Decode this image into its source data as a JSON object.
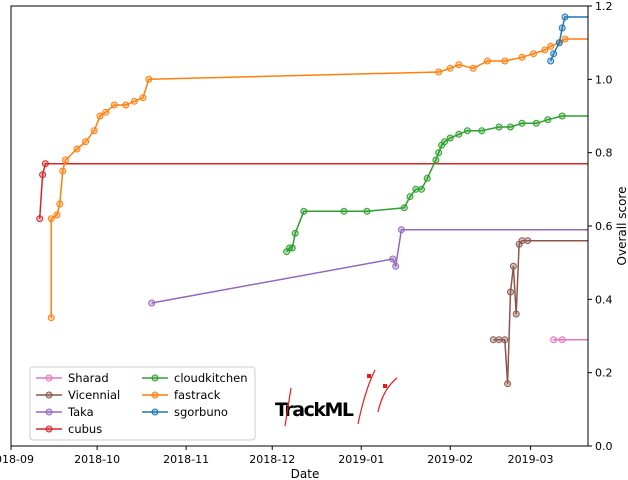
{
  "chart_data": {
    "type": "line",
    "xlabel": "Date",
    "ylabel": "Overall score",
    "xlim": [
      "2018-09-01",
      "2019-03-21"
    ],
    "ylim": [
      0.0,
      1.2
    ],
    "x_ticks": [
      {
        "date": "2018-09-01",
        "label": "2018-09"
      },
      {
        "date": "2018-10-01",
        "label": "2018-10"
      },
      {
        "date": "2018-11-01",
        "label": "2018-11"
      },
      {
        "date": "2018-12-01",
        "label": "2018-12"
      },
      {
        "date": "2019-01-01",
        "label": "2019-01"
      },
      {
        "date": "2019-02-01",
        "label": "2019-02"
      },
      {
        "date": "2019-03-01",
        "label": "2019-03"
      }
    ],
    "y_ticks": [
      {
        "value": 0.0,
        "label": "0.0"
      },
      {
        "value": 0.2,
        "label": "0.2"
      },
      {
        "value": 0.4,
        "label": "0.4"
      },
      {
        "value": 0.6,
        "label": "0.6"
      },
      {
        "value": 0.8,
        "label": "0.8"
      },
      {
        "value": 1.0,
        "label": "1.0"
      },
      {
        "value": 1.2,
        "label": "1.2"
      }
    ],
    "y_axis_side": "right",
    "grid": false,
    "legend_position": "lower-left",
    "legend_columns": 2,
    "logo_text": "TrackML",
    "series": [
      {
        "name": "Sharad",
        "color": "#e377c2",
        "points": [
          [
            "2019-03-09",
            0.29
          ],
          [
            "2019-03-12",
            0.29
          ]
        ],
        "final": 0.29
      },
      {
        "name": "Vicennial",
        "color": "#8c564b",
        "points": [
          [
            "2019-02-16",
            0.29
          ],
          [
            "2019-02-18",
            0.29
          ],
          [
            "2019-02-20",
            0.29
          ],
          [
            "2019-02-21",
            0.17
          ],
          [
            "2019-02-22",
            0.42
          ],
          [
            "2019-02-23",
            0.49
          ],
          [
            "2019-02-24",
            0.36
          ],
          [
            "2019-02-25",
            0.55
          ],
          [
            "2019-02-26",
            0.56
          ],
          [
            "2019-02-28",
            0.56
          ]
        ],
        "final": 0.56
      },
      {
        "name": "Taka",
        "color": "#9467bd",
        "points": [
          [
            "2018-10-20",
            0.39
          ],
          [
            "2019-01-12",
            0.51
          ],
          [
            "2019-01-13",
            0.49
          ],
          [
            "2019-01-15",
            0.59
          ]
        ],
        "final": 0.59
      },
      {
        "name": "cubus",
        "color": "#d62728",
        "points": [
          [
            "2018-09-11",
            0.62
          ],
          [
            "2018-09-12",
            0.74
          ],
          [
            "2018-09-13",
            0.77
          ]
        ],
        "final": 0.77
      },
      {
        "name": "cloudkitchen",
        "color": "#2ca02c",
        "points": [
          [
            "2018-12-06",
            0.53
          ],
          [
            "2018-12-07",
            0.54
          ],
          [
            "2018-12-08",
            0.54
          ],
          [
            "2018-12-09",
            0.58
          ],
          [
            "2018-12-12",
            0.64
          ],
          [
            "2018-12-26",
            0.64
          ],
          [
            "2019-01-03",
            0.64
          ],
          [
            "2019-01-16",
            0.65
          ],
          [
            "2019-01-18",
            0.68
          ],
          [
            "2019-01-20",
            0.7
          ],
          [
            "2019-01-22",
            0.7
          ],
          [
            "2019-01-24",
            0.73
          ],
          [
            "2019-01-27",
            0.78
          ],
          [
            "2019-01-28",
            0.8
          ],
          [
            "2019-01-29",
            0.82
          ],
          [
            "2019-01-30",
            0.83
          ],
          [
            "2019-02-01",
            0.84
          ],
          [
            "2019-02-04",
            0.85
          ],
          [
            "2019-02-07",
            0.86
          ],
          [
            "2019-02-12",
            0.86
          ],
          [
            "2019-02-18",
            0.87
          ],
          [
            "2019-02-22",
            0.87
          ],
          [
            "2019-02-26",
            0.88
          ],
          [
            "2019-03-03",
            0.88
          ],
          [
            "2019-03-07",
            0.89
          ],
          [
            "2019-03-12",
            0.9
          ]
        ],
        "final": 0.9
      },
      {
        "name": "fastrack",
        "color": "#ff7f0e",
        "points": [
          [
            "2018-09-15",
            0.35
          ],
          [
            "2018-09-15",
            0.62
          ],
          [
            "2018-09-17",
            0.63
          ],
          [
            "2018-09-18",
            0.66
          ],
          [
            "2018-09-19",
            0.75
          ],
          [
            "2018-09-20",
            0.78
          ],
          [
            "2018-09-24",
            0.81
          ],
          [
            "2018-09-27",
            0.83
          ],
          [
            "2018-09-30",
            0.86
          ],
          [
            "2018-10-02",
            0.9
          ],
          [
            "2018-10-04",
            0.91
          ],
          [
            "2018-10-07",
            0.93
          ],
          [
            "2018-10-11",
            0.93
          ],
          [
            "2018-10-14",
            0.94
          ],
          [
            "2018-10-17",
            0.95
          ],
          [
            "2018-10-19",
            1.0
          ],
          [
            "2019-01-28",
            1.02
          ],
          [
            "2019-02-01",
            1.03
          ],
          [
            "2019-02-04",
            1.04
          ],
          [
            "2019-02-09",
            1.03
          ],
          [
            "2019-02-14",
            1.05
          ],
          [
            "2019-02-20",
            1.05
          ],
          [
            "2019-02-26",
            1.06
          ],
          [
            "2019-03-02",
            1.07
          ],
          [
            "2019-03-06",
            1.08
          ],
          [
            "2019-03-08",
            1.09
          ],
          [
            "2019-03-11",
            1.1
          ],
          [
            "2019-03-13",
            1.11
          ]
        ],
        "final": 1.11
      },
      {
        "name": "sgorbuno",
        "color": "#1f77b4",
        "points": [
          [
            "2019-03-08",
            1.05
          ],
          [
            "2019-03-09",
            1.07
          ],
          [
            "2019-03-11",
            1.1
          ],
          [
            "2019-03-12",
            1.14
          ],
          [
            "2019-03-13",
            1.17
          ]
        ],
        "final": 1.17
      }
    ]
  }
}
